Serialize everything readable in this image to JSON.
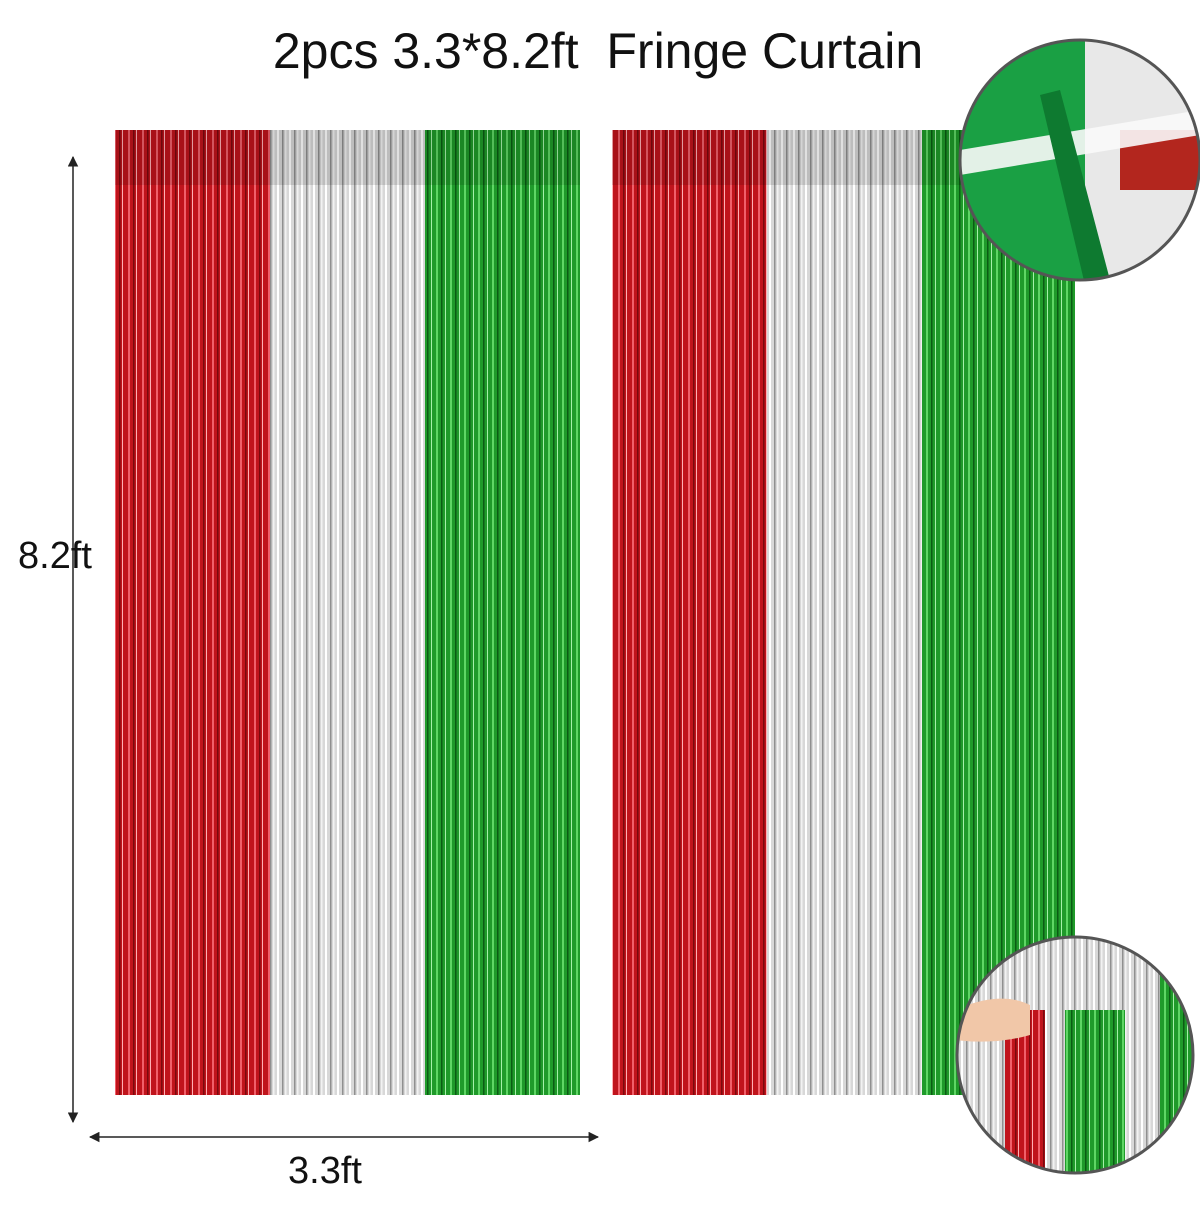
{
  "header": {
    "title": "2pcs 3.3*8.2ft  Fringe Curtain"
  },
  "dimensions": {
    "height": "8.2ft",
    "width": "3.3ft"
  }
}
